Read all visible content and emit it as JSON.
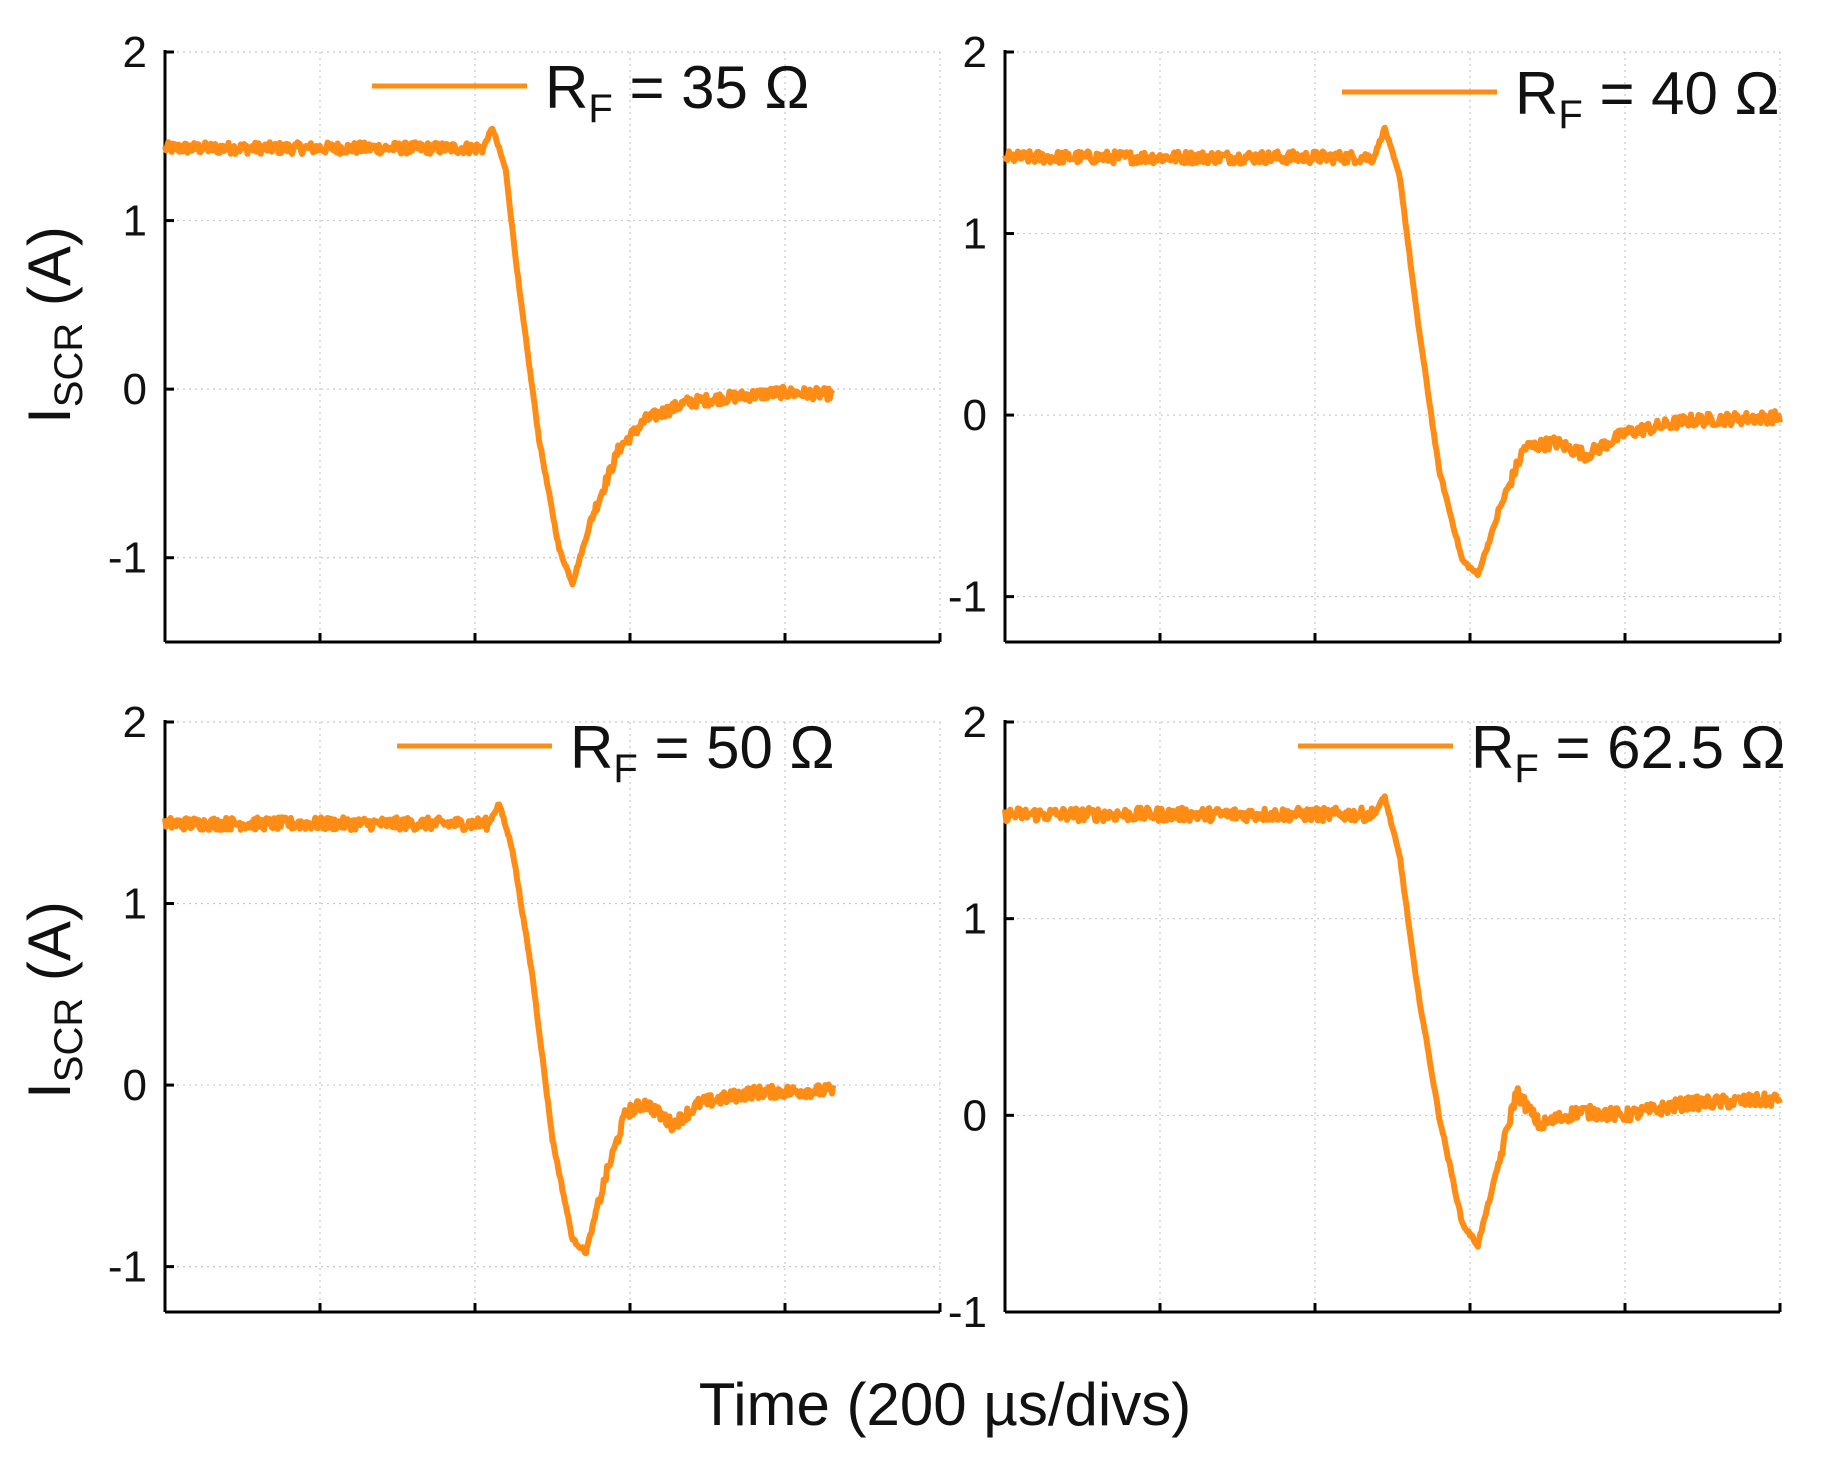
{
  "colors": {
    "trace": "#ff8c14",
    "axis": "#000000",
    "grid": "#c8c8c8"
  },
  "shared_labels": {
    "ylabel_main": "I",
    "ylabel_sub": "SCR",
    "ylabel_unit": " (A)",
    "xlabel": "Time (200 µs/divs)"
  },
  "chart_data": [
    {
      "type": "line",
      "legend": {
        "main": "R",
        "sub": "F",
        "rest": " = 35 Ω"
      },
      "xlabel": "Time (200 µs/divs)",
      "ylabel": "ISCR (A)",
      "xlim": [
        0,
        5.8
      ],
      "ylim": [
        -1.5,
        2
      ],
      "yticks": [
        -1,
        0,
        1,
        2
      ],
      "xtick_count": 6,
      "series": [
        {
          "name": "RF = 35 Ω",
          "x": [
            0,
            2.38,
            2.45,
            2.55,
            2.65,
            2.8,
            2.95,
            3.05,
            3.2,
            3.4,
            3.6,
            3.9,
            4.2,
            4.6,
            5.0
          ],
          "y": [
            1.43,
            1.43,
            1.55,
            1.3,
            0.6,
            -0.3,
            -0.95,
            -1.15,
            -0.75,
            -0.35,
            -0.18,
            -0.08,
            -0.05,
            -0.02,
            -0.03
          ]
        }
      ]
    },
    {
      "type": "line",
      "legend": {
        "main": "R",
        "sub": "F",
        "rest": " = 40 Ω"
      },
      "xlabel": "Time (200 µs/divs)",
      "ylabel": "ISCR (A)",
      "xlim": [
        0,
        5.0
      ],
      "ylim": [
        -1.25,
        2
      ],
      "yticks": [
        -1,
        0,
        1,
        2
      ],
      "xtick_count": 6,
      "series": [
        {
          "name": "RF = 40 Ω",
          "x": [
            0,
            2.38,
            2.45,
            2.55,
            2.65,
            2.8,
            2.95,
            3.05,
            3.2,
            3.35,
            3.55,
            3.75,
            4.0,
            4.4,
            5.0
          ],
          "y": [
            1.42,
            1.42,
            1.58,
            1.3,
            0.6,
            -0.3,
            -0.8,
            -0.88,
            -0.5,
            -0.18,
            -0.15,
            -0.22,
            -0.1,
            -0.03,
            -0.01
          ]
        }
      ]
    },
    {
      "type": "line",
      "legend": {
        "main": "R",
        "sub": "F",
        "rest": " = 50 Ω"
      },
      "xlabel": "Time (200 µs/divs)",
      "ylabel": "ISCR (A)",
      "xlim": [
        0,
        5.8
      ],
      "ylim": [
        -1.25,
        2
      ],
      "yticks": [
        -1,
        0,
        1,
        2
      ],
      "xtick_count": 6,
      "series": [
        {
          "name": "RF = 50 Ω",
          "x": [
            0,
            2.42,
            2.5,
            2.6,
            2.75,
            2.9,
            3.05,
            3.15,
            3.3,
            3.45,
            3.6,
            3.8,
            4.0,
            4.4,
            5.0
          ],
          "y": [
            1.44,
            1.44,
            1.55,
            1.3,
            0.6,
            -0.3,
            -0.85,
            -0.92,
            -0.5,
            -0.15,
            -0.1,
            -0.22,
            -0.1,
            -0.04,
            -0.03
          ]
        }
      ]
    },
    {
      "type": "line",
      "legend": {
        "main": "R",
        "sub": "F",
        "rest": " = 62.5 Ω"
      },
      "xlabel": "Time (200 µs/divs)",
      "ylabel": "ISCR (A)",
      "xlim": [
        0,
        5.0
      ],
      "ylim": [
        -1,
        2
      ],
      "yticks": [
        -1,
        0,
        1,
        2
      ],
      "xtick_count": 6,
      "series": [
        {
          "name": "RF = 62.5 Ω",
          "x": [
            0,
            2.38,
            2.45,
            2.55,
            2.65,
            2.8,
            2.95,
            3.05,
            3.2,
            3.3,
            3.45,
            3.7,
            4.0,
            4.4,
            5.0
          ],
          "y": [
            1.53,
            1.53,
            1.62,
            1.3,
            0.7,
            0.0,
            -0.55,
            -0.66,
            -0.2,
            0.12,
            -0.05,
            0.02,
            0.0,
            0.06,
            0.08
          ]
        }
      ]
    }
  ]
}
